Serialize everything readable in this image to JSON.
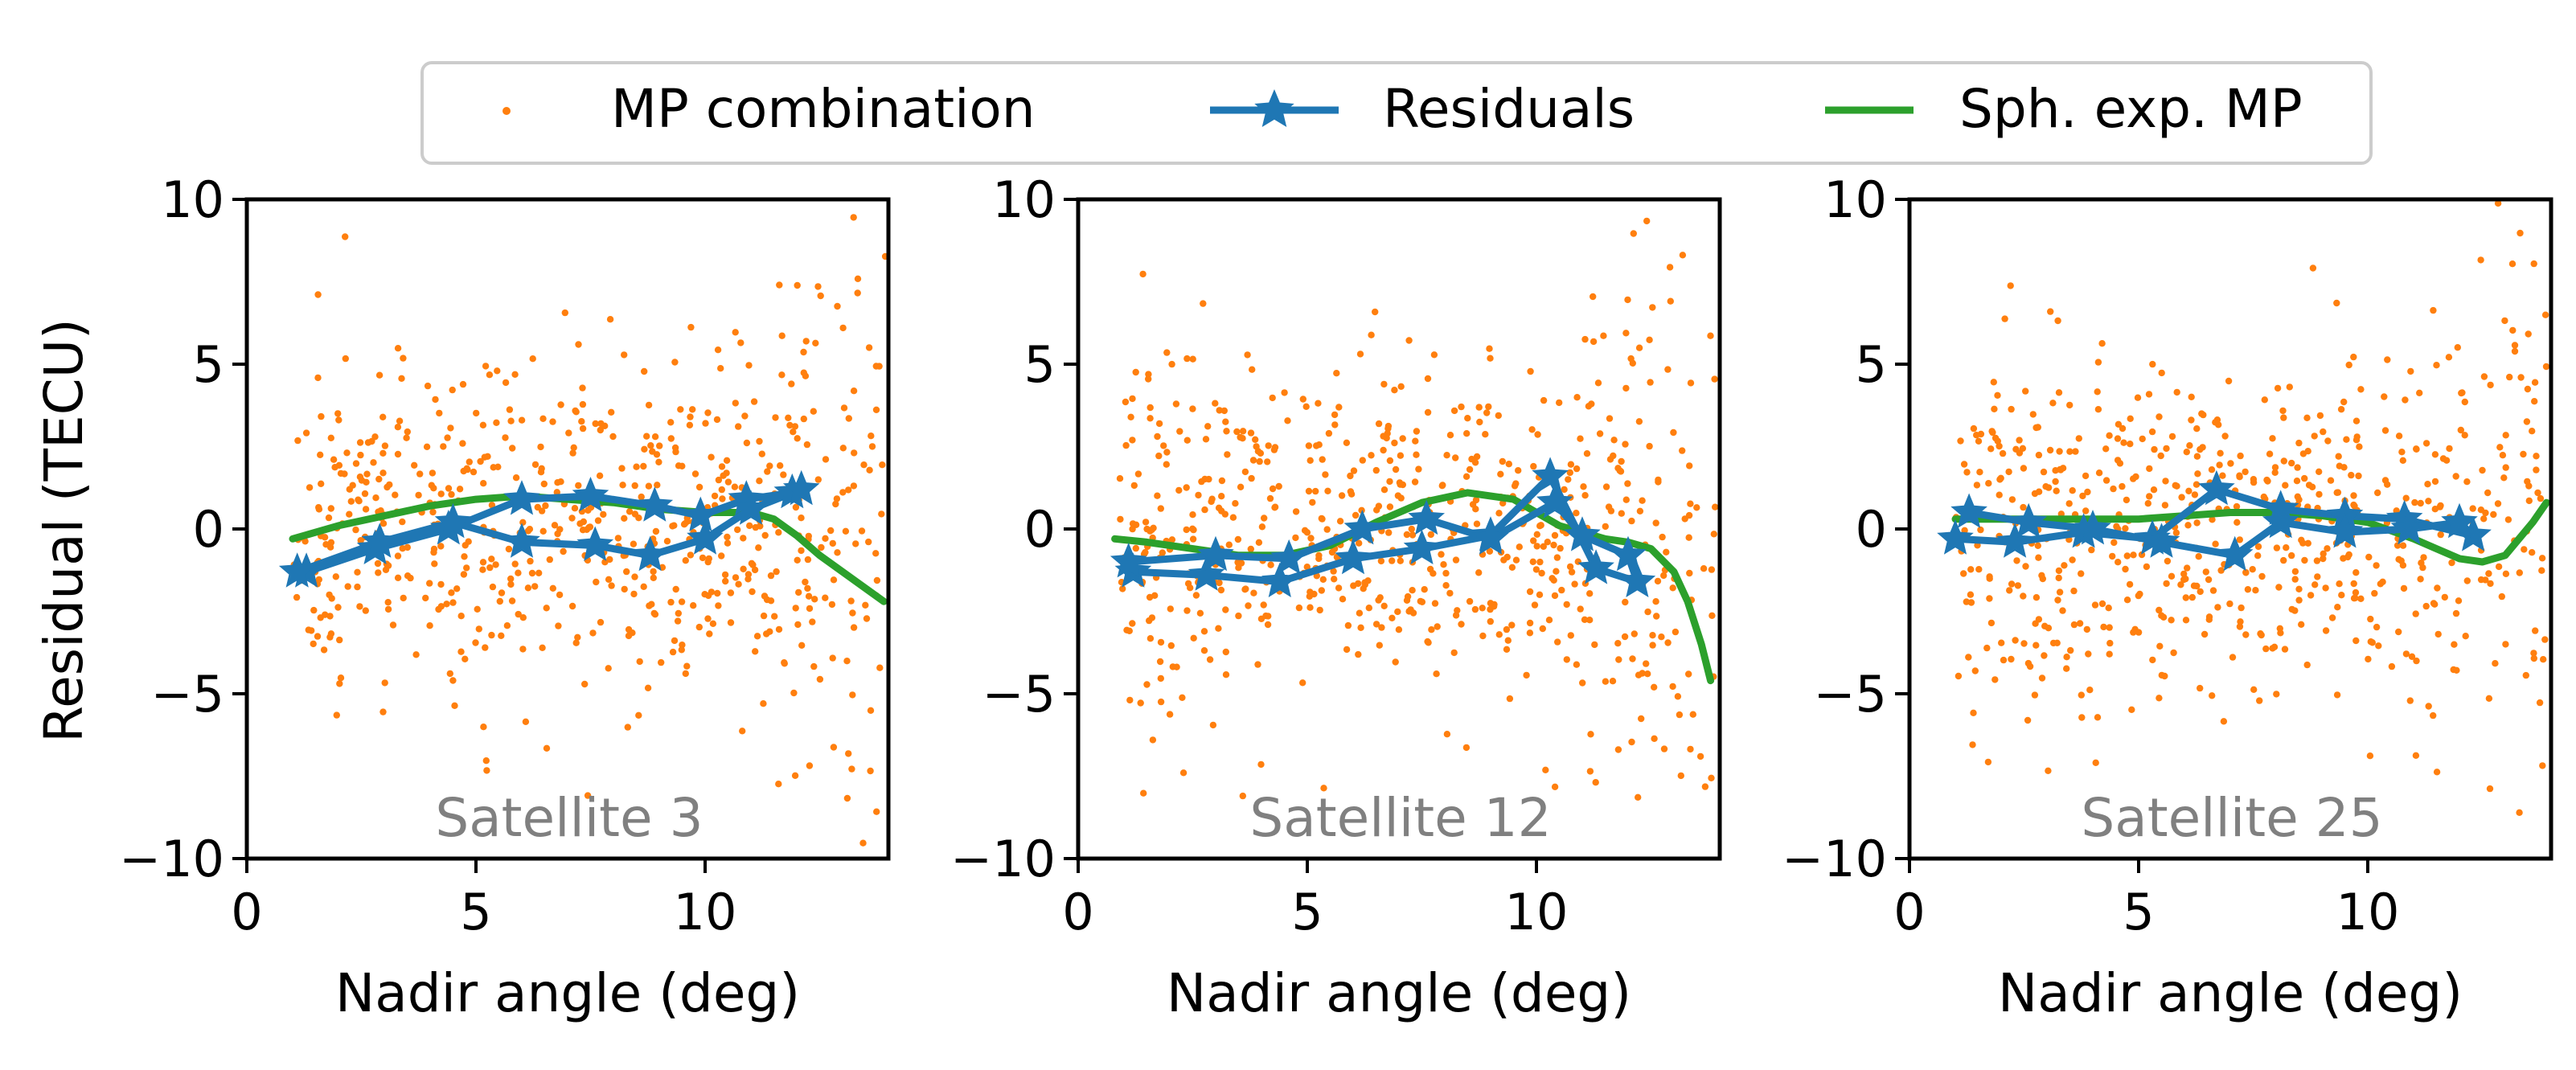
{
  "colors": {
    "scatter": "#ff7f0e",
    "residuals": "#1f77b4",
    "sph_exp": "#2ca02c",
    "annotation": "#808080",
    "legend_border": "#cccccc"
  },
  "chart_data": {
    "type": "line",
    "legend": {
      "placement": "top-center",
      "entries": [
        {
          "label": "MP combination",
          "kind": "scatter"
        },
        {
          "label": "Residuals",
          "kind": "line-star"
        },
        {
          "label": "Sph. exp. MP",
          "kind": "line"
        }
      ]
    },
    "shared": {
      "xlabel": "Nadir angle (deg)",
      "ylabel": "Residual (TECU)",
      "xlim": [
        0,
        14
      ],
      "ylim": [
        -10,
        10
      ],
      "xticks": [
        0,
        5,
        10
      ],
      "xtick_labels": [
        "0",
        "5",
        "10"
      ],
      "yticks": [
        10,
        5,
        0,
        -5,
        -10
      ],
      "ytick_labels": [
        "10",
        "5",
        "0",
        "−5",
        "−10"
      ]
    },
    "panels": [
      {
        "annotation": "Satellite 3",
        "scatter": {
          "n": 650,
          "seed": 3,
          "x_range": [
            1.0,
            14.0
          ],
          "spread": 3.0
        },
        "residuals": {
          "x": [
            1.3,
            2.8,
            4.4,
            6.0,
            7.5,
            8.9,
            9.9,
            10.9,
            11.9,
            12.1,
            11.0,
            10.0,
            8.8,
            7.6,
            6.0,
            4.5,
            2.9,
            1.1
          ],
          "y": [
            -1.3,
            -0.6,
            0.0,
            0.9,
            1.0,
            0.7,
            0.4,
            0.9,
            1.1,
            1.2,
            0.6,
            -0.3,
            -0.8,
            -0.5,
            -0.4,
            0.2,
            -0.4,
            -1.3
          ]
        },
        "sph_exp": {
          "x": [
            1.0,
            2.0,
            3.0,
            4.0,
            5.0,
            6.0,
            7.0,
            8.0,
            9.0,
            10.0,
            10.5,
            11.0,
            11.5,
            12.0,
            12.5,
            13.0,
            13.5,
            13.9
          ],
          "y": [
            -0.3,
            0.1,
            0.4,
            0.7,
            0.9,
            1.0,
            0.9,
            0.8,
            0.6,
            0.5,
            0.5,
            0.5,
            0.3,
            -0.2,
            -0.8,
            -1.3,
            -1.8,
            -2.2
          ]
        }
      },
      {
        "annotation": "Satellite 12",
        "scatter": {
          "n": 650,
          "seed": 12,
          "x_range": [
            0.9,
            13.9
          ],
          "spread": 3.0
        },
        "residuals": {
          "x": [
            1.2,
            2.8,
            4.4,
            6.0,
            7.5,
            9.0,
            10.3,
            11.3,
            12.2,
            12.0,
            11.0,
            10.4,
            9.0,
            7.6,
            6.2,
            4.6,
            3.0,
            1.1
          ],
          "y": [
            -1.3,
            -1.4,
            -1.6,
            -0.9,
            -0.6,
            -0.2,
            1.6,
            -1.2,
            -1.6,
            -0.8,
            -0.2,
            0.8,
            -0.3,
            0.3,
            0.0,
            -0.9,
            -0.8,
            -1.0
          ]
        },
        "sph_exp": {
          "x": [
            0.8,
            1.5,
            2.5,
            3.5,
            4.5,
            5.5,
            6.5,
            7.5,
            8.5,
            9.5,
            10.5,
            11.5,
            12.0,
            12.5,
            13.0,
            13.3,
            13.6,
            13.8
          ],
          "y": [
            -0.3,
            -0.4,
            -0.6,
            -0.8,
            -0.8,
            -0.5,
            0.2,
            0.8,
            1.1,
            0.9,
            0.1,
            -0.3,
            -0.4,
            -0.6,
            -1.3,
            -2.2,
            -3.5,
            -4.6
          ]
        }
      },
      {
        "annotation": "Satellite 25",
        "scatter": {
          "n": 650,
          "seed": 25,
          "x_range": [
            1.0,
            13.9
          ],
          "spread": 3.0
        },
        "residuals": {
          "x": [
            1.0,
            2.3,
            3.8,
            5.3,
            6.7,
            8.1,
            9.5,
            10.8,
            12.3,
            12.0,
            10.9,
            9.5,
            8.1,
            7.1,
            5.5,
            4.0,
            2.6,
            1.3
          ],
          "y": [
            -0.3,
            -0.4,
            -0.1,
            -0.3,
            1.2,
            0.6,
            0.4,
            0.3,
            -0.2,
            0.2,
            0.0,
            -0.1,
            0.2,
            -0.8,
            -0.4,
            0.0,
            0.2,
            0.5
          ]
        },
        "sph_exp": {
          "x": [
            1.0,
            2.0,
            3.0,
            4.0,
            5.0,
            6.0,
            7.0,
            8.0,
            9.0,
            10.0,
            11.0,
            11.5,
            12.0,
            12.5,
            13.0,
            13.3,
            13.6,
            13.9
          ],
          "y": [
            0.3,
            0.3,
            0.3,
            0.3,
            0.3,
            0.4,
            0.5,
            0.5,
            0.4,
            0.2,
            -0.3,
            -0.6,
            -0.9,
            -1.0,
            -0.8,
            -0.3,
            0.2,
            0.8
          ]
        }
      }
    ]
  }
}
